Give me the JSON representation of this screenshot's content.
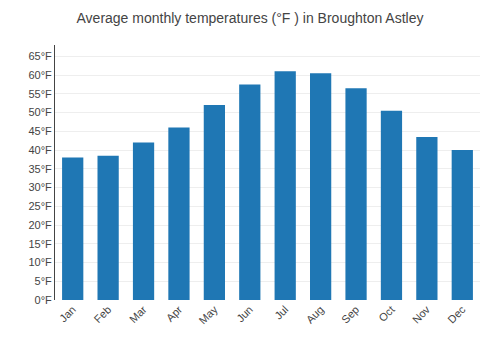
{
  "chart_data": {
    "type": "bar",
    "title": "Average monthly temperatures (°F ) in Broughton Astley",
    "categories": [
      "Jan",
      "Feb",
      "Mar",
      "Apr",
      "May",
      "Jun",
      "Jul",
      "Aug",
      "Sep",
      "Oct",
      "Nov",
      "Dec"
    ],
    "values": [
      38,
      38.5,
      42,
      46,
      52,
      57.5,
      61,
      60.5,
      56.5,
      50.5,
      43.5,
      40
    ],
    "ylim": [
      0,
      68
    ],
    "yticks": [
      {
        "value": 0,
        "label": "0°F"
      },
      {
        "value": 5,
        "label": "5°F"
      },
      {
        "value": 10,
        "label": "10°F"
      },
      {
        "value": 15,
        "label": "15°F"
      },
      {
        "value": 20,
        "label": "20°F"
      },
      {
        "value": 25,
        "label": "25°F"
      },
      {
        "value": 30,
        "label": "30°F"
      },
      {
        "value": 35,
        "label": "35°F"
      },
      {
        "value": 40,
        "label": "40°F"
      },
      {
        "value": 45,
        "label": "45°F"
      },
      {
        "value": 50,
        "label": "50°F"
      },
      {
        "value": 55,
        "label": "55°F"
      },
      {
        "value": 60,
        "label": "60°F"
      },
      {
        "value": 65,
        "label": "65°F"
      }
    ],
    "grid": true
  }
}
